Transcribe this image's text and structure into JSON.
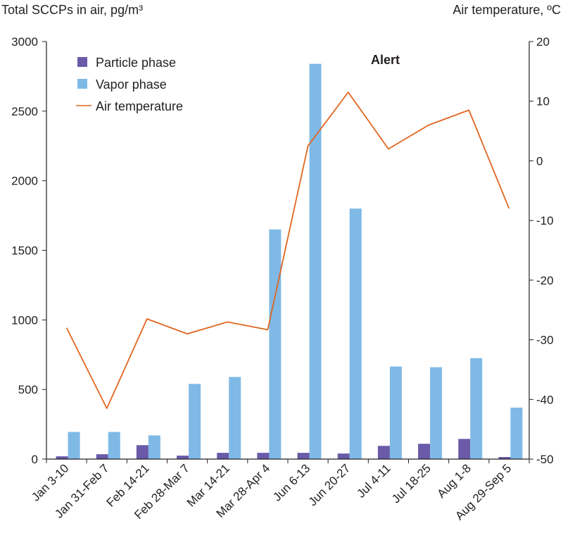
{
  "chart_data": {
    "type": "bar",
    "categories": [
      "Jan 3-10",
      "Jan 31-Feb 7",
      "Feb 14-21",
      "Feb 28-Mar 7",
      "Mar 14-21",
      "Mar 28-Apr 4",
      "Jun 6-13",
      "Jun 20-27",
      "Jul 4-11",
      "Jul 18-25",
      "Aug 1-8",
      "Aug 29-Sep 5"
    ],
    "series": [
      {
        "name": "Particle phase",
        "kind": "bar",
        "axis": "left",
        "color": "#6a5aa8",
        "values": [
          20,
          35,
          100,
          25,
          45,
          45,
          45,
          40,
          95,
          110,
          145,
          15
        ]
      },
      {
        "name": "Vapor phase",
        "kind": "bar",
        "axis": "left",
        "color": "#7fb9e6",
        "values": [
          195,
          195,
          170,
          540,
          590,
          1650,
          2840,
          1800,
          665,
          660,
          725,
          370
        ]
      },
      {
        "name": "Air temperature",
        "kind": "line",
        "axis": "right",
        "color": "#e0661f",
        "values": [
          -28,
          -41.5,
          -26.5,
          -29,
          -27,
          -28.3,
          2.5,
          11.5,
          2,
          6,
          8.5,
          -8
        ]
      }
    ],
    "left_axis": {
      "title": "Total SCCPs in air, pg/m³",
      "range": [
        0,
        3000
      ],
      "ticks": [
        "0",
        "500",
        "1000",
        "1500",
        "2000",
        "2500",
        "3000"
      ]
    },
    "right_axis": {
      "title": "Air temperature, ºC",
      "range": [
        -50,
        20
      ],
      "ticks": [
        "-50",
        "-40",
        "-30",
        "-20",
        "-10",
        "0",
        "10",
        "20"
      ]
    },
    "annotation": "Alert",
    "legend": {
      "placement": "top-left",
      "entries": [
        "Particle phase",
        "Vapor phase",
        "Air temperature"
      ]
    },
    "grid": false
  }
}
